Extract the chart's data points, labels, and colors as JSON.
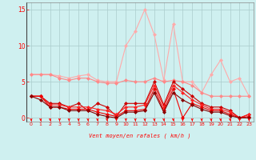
{
  "xlabel": "Vent moyen/en rafales ( km/h )",
  "background_color": "#cff0f0",
  "grid_color": "#aacccc",
  "x_ticks": [
    0,
    1,
    2,
    3,
    4,
    5,
    6,
    7,
    8,
    9,
    10,
    11,
    12,
    13,
    14,
    15,
    16,
    17,
    18,
    19,
    20,
    21,
    22,
    23
  ],
  "ylim": [
    -0.5,
    16
  ],
  "yticks": [
    0,
    5,
    10,
    15
  ],
  "series": [
    {
      "color": "#ffaaaa",
      "linewidth": 0.8,
      "marker": "D",
      "markersize": 2,
      "y": [
        6.0,
        6.0,
        6.0,
        5.8,
        5.5,
        5.8,
        6.0,
        5.2,
        5.0,
        5.0,
        10.0,
        12.0,
        15.0,
        11.5,
        5.2,
        13.0,
        5.0,
        5.0,
        3.5,
        6.0,
        8.0,
        5.0,
        5.5,
        3.0
      ]
    },
    {
      "color": "#ff8888",
      "linewidth": 0.8,
      "marker": "D",
      "markersize": 2,
      "y": [
        6.0,
        6.0,
        6.0,
        5.5,
        5.2,
        5.5,
        5.5,
        5.0,
        4.8,
        4.8,
        5.2,
        5.0,
        5.0,
        5.5,
        5.0,
        5.2,
        5.0,
        4.5,
        3.5,
        3.0,
        3.0,
        3.0,
        3.0,
        3.0
      ]
    },
    {
      "color": "#cc0000",
      "linewidth": 0.8,
      "marker": "D",
      "markersize": 2,
      "y": [
        3.0,
        3.0,
        2.0,
        2.0,
        1.5,
        2.0,
        1.0,
        2.0,
        1.5,
        0.2,
        2.0,
        2.0,
        2.0,
        5.0,
        1.8,
        5.0,
        4.0,
        3.0,
        2.0,
        1.5,
        1.5,
        1.0,
        0.0,
        0.5
      ]
    },
    {
      "color": "#ff2222",
      "linewidth": 0.8,
      "marker": "D",
      "markersize": 2,
      "y": [
        3.0,
        3.0,
        1.8,
        1.8,
        1.5,
        1.5,
        1.5,
        1.2,
        1.0,
        0.5,
        1.5,
        1.5,
        1.8,
        4.5,
        1.5,
        4.5,
        3.5,
        2.5,
        1.8,
        1.2,
        1.2,
        0.8,
        0.0,
        0.5
      ]
    },
    {
      "color": "#ee0000",
      "linewidth": 0.8,
      "marker": "D",
      "markersize": 2,
      "y": [
        3.0,
        3.0,
        1.5,
        1.5,
        1.2,
        1.2,
        1.2,
        0.8,
        0.5,
        0.2,
        1.0,
        1.0,
        1.2,
        4.0,
        1.0,
        4.0,
        0.0,
        2.0,
        1.5,
        1.0,
        1.0,
        0.5,
        0.0,
        0.2
      ]
    },
    {
      "color": "#880000",
      "linewidth": 0.8,
      "marker": "D",
      "markersize": 2,
      "y": [
        3.0,
        2.5,
        1.5,
        1.5,
        1.0,
        1.0,
        1.0,
        0.5,
        0.2,
        0.0,
        0.8,
        0.8,
        1.0,
        3.5,
        0.8,
        3.5,
        2.5,
        1.8,
        1.2,
        0.8,
        0.8,
        0.3,
        0.0,
        0.0
      ]
    }
  ]
}
